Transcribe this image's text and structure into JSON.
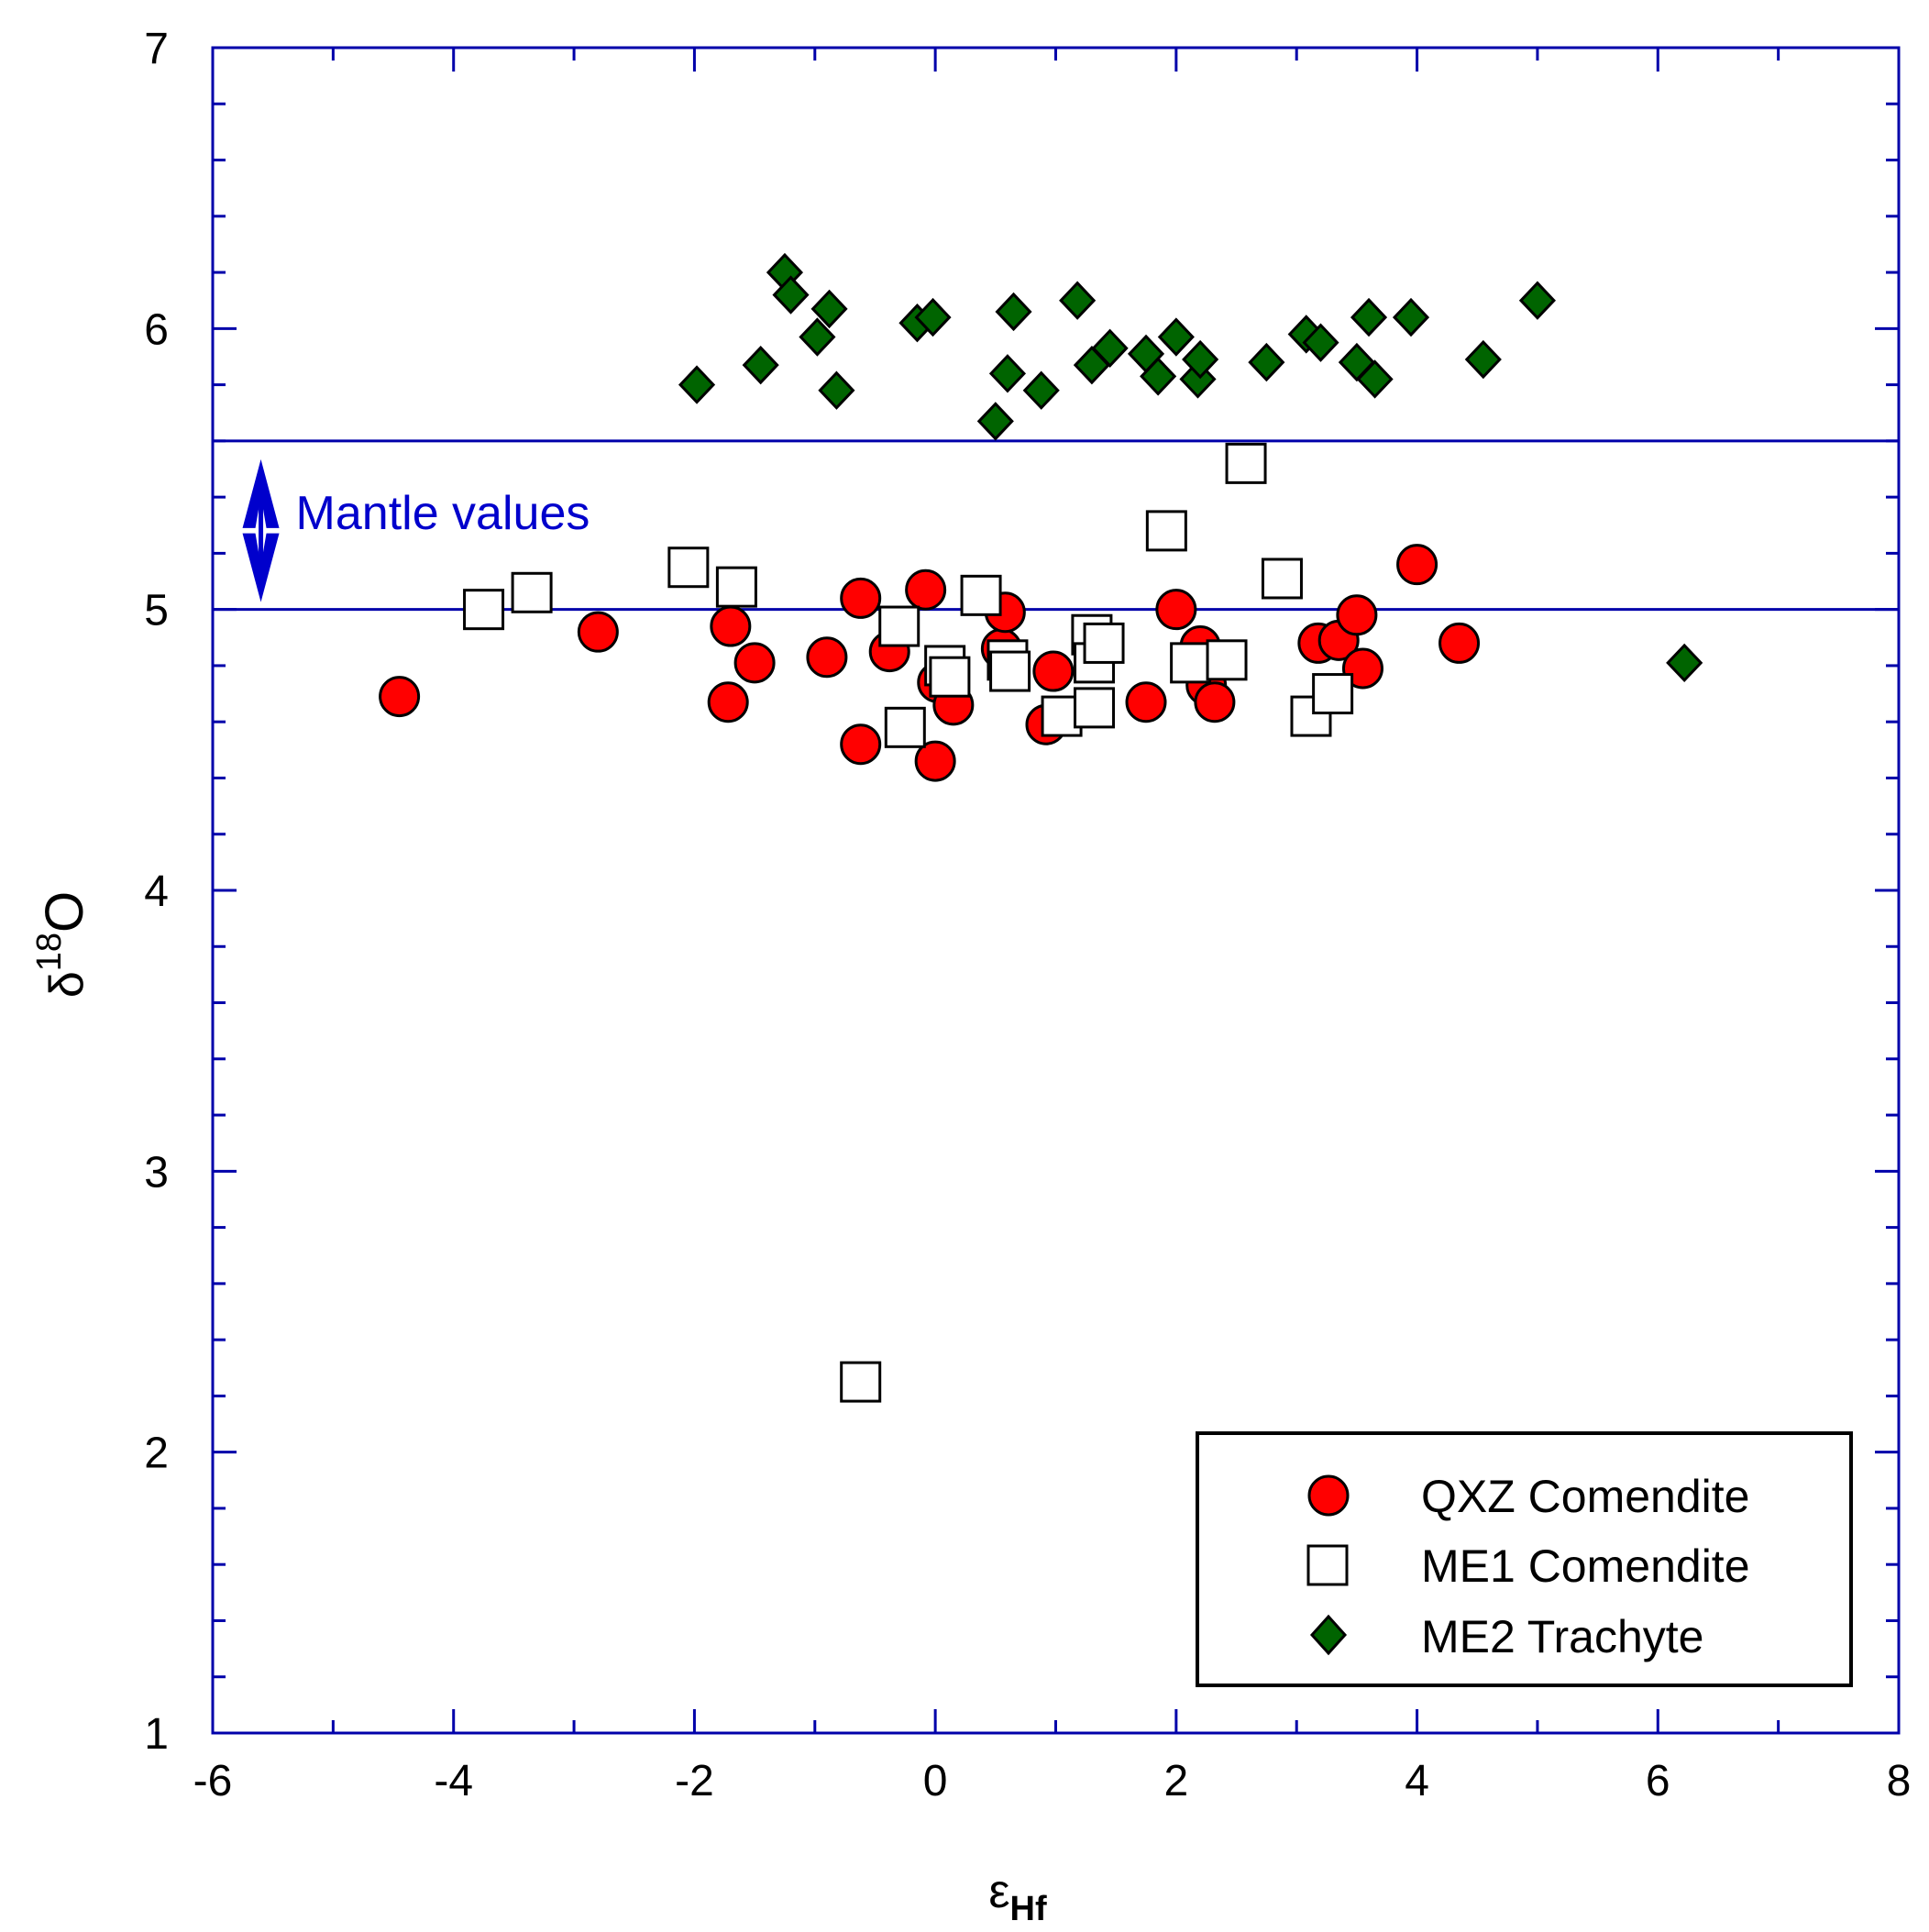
{
  "chart_data": {
    "type": "scatter",
    "title": "",
    "xlabel": "ε",
    "xlabel_sub": "Hf",
    "ylabel": "δ",
    "ylabel_sup": "18",
    "ylabel_tail": "O",
    "xlim": [
      -6,
      8
    ],
    "ylim": [
      1,
      7
    ],
    "x_ticks": [
      -6,
      -4,
      -2,
      0,
      2,
      4,
      6,
      8
    ],
    "y_ticks": [
      1,
      2,
      3,
      4,
      5,
      6,
      7
    ],
    "x_tick_labels": [
      "-6",
      "-4",
      "-2",
      "0",
      "2",
      "4",
      "6",
      "8"
    ],
    "y_tick_labels": [
      "1",
      "2",
      "3",
      "4",
      "5",
      "6",
      "7"
    ],
    "grid": false,
    "reference_lines": [
      5.0,
      5.6
    ],
    "annotation": {
      "text": "Mantle values",
      "x": -5.6,
      "y_range": [
        5.0,
        5.6
      ]
    },
    "legend_position": "bottom-right",
    "colors": {
      "axis": "#0000aa",
      "annotation": "#0000cc",
      "qxz": "#ff0000",
      "me1": "#ffffff",
      "me2": "#006400"
    },
    "series": [
      {
        "name": "QXZ Comendite",
        "marker": "circle",
        "points": [
          [
            -4.45,
            4.69
          ],
          [
            -2.8,
            4.92
          ],
          [
            -1.7,
            4.94
          ],
          [
            -1.72,
            4.67
          ],
          [
            -1.5,
            4.81
          ],
          [
            -0.9,
            4.83
          ],
          [
            -0.62,
            5.04
          ],
          [
            -0.62,
            4.52
          ],
          [
            -0.38,
            4.85
          ],
          [
            -0.08,
            5.07
          ],
          [
            0.02,
            4.74
          ],
          [
            0.0,
            4.46
          ],
          [
            0.15,
            4.66
          ],
          [
            0.55,
            4.86
          ],
          [
            0.58,
            4.99
          ],
          [
            0.92,
            4.59
          ],
          [
            0.98,
            4.78
          ],
          [
            1.75,
            4.67
          ],
          [
            2.0,
            5.0
          ],
          [
            2.2,
            4.87
          ],
          [
            2.25,
            4.73
          ],
          [
            2.32,
            4.67
          ],
          [
            3.18,
            4.88
          ],
          [
            3.35,
            4.89
          ],
          [
            3.5,
            4.98
          ],
          [
            3.55,
            4.79
          ],
          [
            4.0,
            5.16
          ],
          [
            4.35,
            4.88
          ]
        ]
      },
      {
        "name": "ME1 Comendite",
        "marker": "square",
        "points": [
          [
            -3.75,
            5.0
          ],
          [
            -3.35,
            5.06
          ],
          [
            -2.05,
            5.15
          ],
          [
            -1.65,
            5.08
          ],
          [
            -0.62,
            2.25
          ],
          [
            -0.3,
            4.94
          ],
          [
            -0.25,
            4.58
          ],
          [
            0.08,
            4.8
          ],
          [
            0.12,
            4.76
          ],
          [
            0.38,
            5.05
          ],
          [
            0.6,
            4.82
          ],
          [
            0.62,
            4.78
          ],
          [
            1.05,
            4.62
          ],
          [
            1.3,
            4.91
          ],
          [
            1.32,
            4.81
          ],
          [
            1.32,
            4.65
          ],
          [
            1.4,
            4.88
          ],
          [
            1.92,
            5.28
          ],
          [
            2.12,
            4.81
          ],
          [
            2.42,
            4.82
          ],
          [
            2.58,
            5.52
          ],
          [
            2.88,
            5.11
          ],
          [
            3.12,
            4.62
          ],
          [
            3.3,
            4.7
          ]
        ]
      },
      {
        "name": "ME2 Trachyte",
        "marker": "diamond",
        "points": [
          [
            -1.98,
            5.8
          ],
          [
            -1.45,
            5.87
          ],
          [
            -1.25,
            6.2
          ],
          [
            -1.2,
            6.12
          ],
          [
            -0.98,
            5.97
          ],
          [
            -0.88,
            6.07
          ],
          [
            -0.82,
            5.78
          ],
          [
            -0.15,
            6.02
          ],
          [
            -0.02,
            6.04
          ],
          [
            0.5,
            5.67
          ],
          [
            0.6,
            5.84
          ],
          [
            0.65,
            6.06
          ],
          [
            0.88,
            5.78
          ],
          [
            1.18,
            6.1
          ],
          [
            1.3,
            5.87
          ],
          [
            1.45,
            5.93
          ],
          [
            1.75,
            5.91
          ],
          [
            1.85,
            5.83
          ],
          [
            2.0,
            5.97
          ],
          [
            2.18,
            5.82
          ],
          [
            2.2,
            5.89
          ],
          [
            2.75,
            5.88
          ],
          [
            3.08,
            5.98
          ],
          [
            3.2,
            5.95
          ],
          [
            3.5,
            5.88
          ],
          [
            3.6,
            6.04
          ],
          [
            3.65,
            5.82
          ],
          [
            3.95,
            6.04
          ],
          [
            4.55,
            5.89
          ],
          [
            5.0,
            6.1
          ],
          [
            6.22,
            4.81
          ]
        ]
      }
    ]
  }
}
